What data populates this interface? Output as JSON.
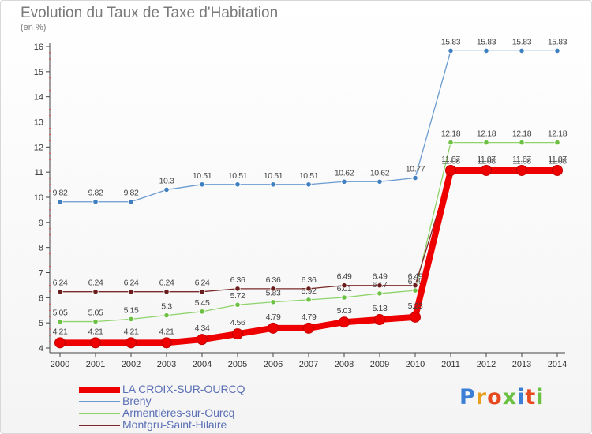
{
  "chart_data": {
    "type": "line",
    "title": "Evolution du Taux de Taxe d'Habitation",
    "subtitle": "(en %)",
    "x": [
      "2000",
      "2001",
      "2002",
      "2003",
      "2004",
      "2005",
      "2006",
      "2007",
      "2008",
      "2009",
      "2010",
      "2011",
      "2012",
      "2013",
      "2014"
    ],
    "ylim": [
      4,
      16
    ],
    "yticks": [
      4,
      5,
      6,
      7,
      8,
      9,
      10,
      11,
      12,
      13,
      14,
      15,
      16
    ],
    "grid": false,
    "legend_position": "bottom-left",
    "series": [
      {
        "name": "Breny",
        "color": "#6a9bd0",
        "marker_color": "#3f7fc0",
        "values": [
          9.82,
          9.82,
          9.82,
          10.3,
          10.51,
          10.51,
          10.51,
          10.51,
          10.62,
          10.62,
          10.77,
          15.83,
          15.83,
          15.83,
          15.83
        ],
        "labels": [
          "9.82",
          "9.82",
          "9.82",
          "10.3",
          "10.51",
          "10.51",
          "10.51",
          "10.51",
          "10.62",
          "10.62",
          "10.77",
          "15.83",
          "15.83",
          "15.83",
          "15.83"
        ]
      },
      {
        "name": "Armentières-sur-Ourcq",
        "color": "#8ed36a",
        "marker_color": "#6cc043",
        "values": [
          5.05,
          5.05,
          5.15,
          5.3,
          5.45,
          5.72,
          5.83,
          5.92,
          6.01,
          6.17,
          6.29,
          12.18,
          12.18,
          12.18,
          12.18
        ],
        "labels": [
          "5.05",
          "5.05",
          "5.15",
          "5.3",
          "5.45",
          "5.72",
          "5.83",
          "5.92",
          "6.01",
          "6.17",
          "6.29",
          "12.18",
          "12.18",
          "12.18",
          "12.18"
        ]
      },
      {
        "name": "Montgru-Saint-Hilaire",
        "color": "#7a2a2a",
        "marker_color": "#6a1d1d",
        "values": [
          6.24,
          6.24,
          6.24,
          6.24,
          6.24,
          6.36,
          6.36,
          6.36,
          6.49,
          6.49,
          6.49,
          11.08,
          11.08,
          11.08,
          11.08
        ],
        "labels": [
          "6.24",
          "6.24",
          "6.24",
          "6.24",
          "6.24",
          "6.36",
          "6.36",
          "6.36",
          "6.49",
          "6.49",
          "6.49",
          "11.08",
          "11.08",
          "11.08",
          "11.08"
        ]
      },
      {
        "name": "LA CROIX-SUR-OURCQ",
        "color": "#ee0000",
        "marker_color": "#ee0000",
        "values": [
          4.21,
          4.21,
          4.21,
          4.21,
          4.34,
          4.56,
          4.79,
          4.79,
          5.03,
          5.13,
          5.23,
          11.07,
          11.07,
          11.07,
          11.07
        ],
        "labels": [
          "4.21",
          "4.21",
          "4.21",
          "4.21",
          "4.34",
          "4.56",
          "4.79",
          "4.79",
          "5.03",
          "5.13",
          "5.23",
          "11.07",
          "11.07",
          "11.07",
          "11.07"
        ]
      }
    ]
  },
  "legend": [
    {
      "label": "LA CROIX-SUR-OURCQ",
      "color": "#ee0000",
      "thickness": 8
    },
    {
      "label": "Breny",
      "color": "#6a9bd0",
      "thickness": 2
    },
    {
      "label": "Armentières-sur-Ourcq",
      "color": "#8ed36a",
      "thickness": 2
    },
    {
      "label": "Montgru-Saint-Hilaire",
      "color": "#7a2a2a",
      "thickness": 2
    }
  ],
  "logo": {
    "text": "Proxiti",
    "letter_colors": [
      "#3a7fd5",
      "#e8a020",
      "#e84a20",
      "#6cc043",
      "#3a7fd5",
      "#e84a20",
      "#6cc043"
    ]
  }
}
